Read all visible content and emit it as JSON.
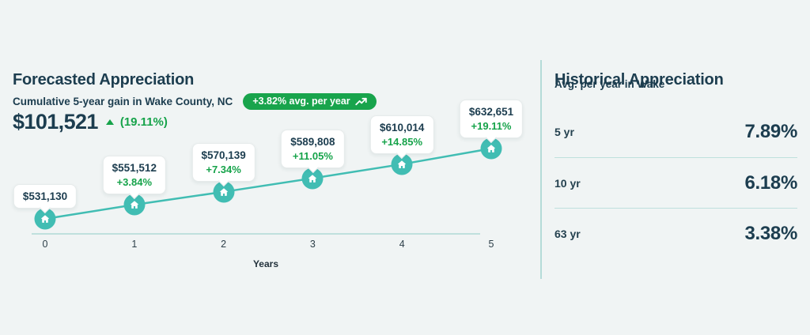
{
  "forecast": {
    "title": "Forecasted Appreciation",
    "subtitle": "Cumulative 5-year gain in Wake County, NC",
    "badge_label": "+3.82% avg. per year",
    "gain_value": "$101,521",
    "gain_percent": "(19.11%)"
  },
  "historical": {
    "title": "Historical Appreciation",
    "subtitle": "Avg. per year in Wake",
    "rows": [
      {
        "label": "5 yr",
        "value": "7.89%"
      },
      {
        "label": "10 yr",
        "value": "6.18%"
      },
      {
        "label": "63 yr",
        "value": "3.38%"
      }
    ]
  },
  "chart_data": {
    "type": "line",
    "x": [
      0,
      1,
      2,
      3,
      4,
      5
    ],
    "values": [
      531130,
      551512,
      570139,
      589808,
      610014,
      632651
    ],
    "point_labels": [
      "$531,130",
      "$551,512",
      "$570,139",
      "$589,808",
      "$610,014",
      "$632,651"
    ],
    "point_percents": [
      "",
      "+3.84%",
      "+7.34%",
      "+11.05%",
      "+14.85%",
      "+19.11%"
    ],
    "title": "Forecasted Appreciation",
    "xlabel": "Years",
    "ylabel": "",
    "ylim": [
      525000,
      640000
    ],
    "grid": false,
    "legend": "none",
    "marker": "home-icon"
  },
  "colors": {
    "accent_teal": "#41bdb3",
    "positive_green": "#16a34a",
    "badge_green": "#18a44c",
    "heading_navy": "#1c3d4f",
    "background": "#f0f4f4",
    "divider_teal": "#b5dbd8",
    "axis_line": "#bfe0dd",
    "tooltip_bg": "#ffffff"
  }
}
